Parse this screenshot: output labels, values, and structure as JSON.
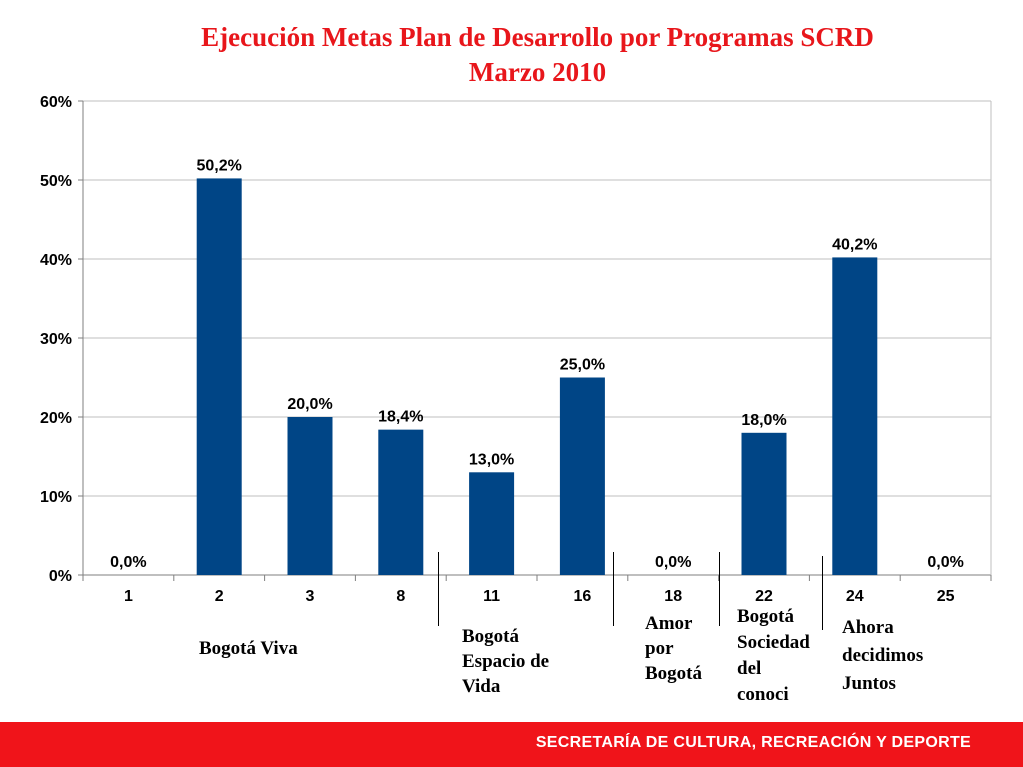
{
  "slide": {
    "title_line1": "Ejecución Metas Plan de Desarrollo por Programas SCRD",
    "title_line2": "Marzo 2010",
    "footer": "SECRETARÍA DE CULTURA, RECREACIÓN Y DEPORTE"
  },
  "groups": [
    {
      "lines": [
        "Bogotá Viva"
      ]
    },
    {
      "lines": [
        "Bogotá",
        "Espacio de",
        "Vida"
      ]
    },
    {
      "lines": [
        "Amor",
        "por",
        "Bogotá"
      ]
    },
    {
      "lines": [
        "Bogotá",
        "Sociedad",
        "del",
        "conoci"
      ]
    },
    {
      "lines": [
        "Ahora",
        "decidimos",
        "Juntos"
      ]
    }
  ],
  "colors": {
    "title": "#e8161b",
    "bar": "#004586",
    "footer_bg": "#f0141a"
  },
  "chart_data": {
    "type": "bar",
    "title": "Ejecución Metas Plan de Desarrollo por Programas SCRD Marzo 2010",
    "categories": [
      "1",
      "2",
      "3",
      "8",
      "11",
      "16",
      "18",
      "22",
      "24",
      "25"
    ],
    "values": [
      0.0,
      50.2,
      20.0,
      18.4,
      13.0,
      25.0,
      0.0,
      18.0,
      40.2,
      0.0
    ],
    "data_labels": [
      "0,0%",
      "50,2%",
      "20,0%",
      "18,4%",
      "13,0%",
      "25,0%",
      "0,0%",
      "18,0%",
      "40,2%",
      "0,0%"
    ],
    "y_ticks": [
      "0%",
      "10%",
      "20%",
      "30%",
      "40%",
      "50%",
      "60%"
    ],
    "ylim": [
      0,
      60
    ],
    "xlabel": "",
    "ylabel": "",
    "grid": true
  }
}
